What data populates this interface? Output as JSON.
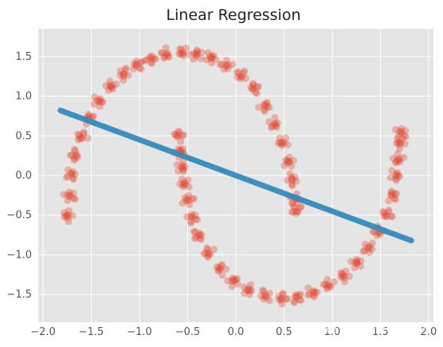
{
  "chart_data": {
    "type": "scatter",
    "title": "Linear Regression",
    "xlabel": "",
    "ylabel": "",
    "xlim": [
      -2.05,
      2.05
    ],
    "ylim": [
      -1.85,
      1.85
    ],
    "grid": true,
    "x_ticks": [
      "−2.0",
      "−1.5",
      "−1.0",
      "−0.5",
      "0.0",
      "0.5",
      "1.0",
      "1.5",
      "2.0"
    ],
    "y_ticks": [
      "−1.5",
      "−1.0",
      "−0.5",
      "0.0",
      "0.5",
      "1.0",
      "1.5"
    ],
    "x_tick_values": [
      -2.0,
      -1.5,
      -1.0,
      -0.5,
      0.0,
      0.5,
      1.0,
      1.5,
      2.0
    ],
    "y_tick_values": [
      -1.5,
      -1.0,
      -0.5,
      0.0,
      0.5,
      1.0,
      1.5
    ],
    "series": [
      {
        "kind": "scatter",
        "color": "#E24A33",
        "points": [
          [
            -1.75,
            -0.5
          ],
          [
            -1.72,
            -0.25
          ],
          [
            -1.7,
            0.02
          ],
          [
            -1.66,
            0.25
          ],
          [
            -1.6,
            0.48
          ],
          [
            -1.52,
            0.72
          ],
          [
            -1.42,
            0.93
          ],
          [
            -1.3,
            1.12
          ],
          [
            -1.17,
            1.28
          ],
          [
            -1.03,
            1.4
          ],
          [
            -0.88,
            1.48
          ],
          [
            -0.72,
            1.53
          ],
          [
            -0.55,
            1.55
          ],
          [
            -0.4,
            1.53
          ],
          [
            -0.25,
            1.48
          ],
          [
            -0.1,
            1.38
          ],
          [
            0.05,
            1.25
          ],
          [
            0.18,
            1.1
          ],
          [
            0.3,
            0.88
          ],
          [
            0.4,
            0.65
          ],
          [
            0.48,
            0.42
          ],
          [
            0.55,
            0.18
          ],
          [
            0.59,
            -0.05
          ],
          [
            0.62,
            -0.3
          ],
          [
            0.63,
            -0.45
          ],
          [
            -0.6,
            0.5
          ],
          [
            -0.58,
            0.3
          ],
          [
            -0.56,
            0.1
          ],
          [
            -0.54,
            -0.1
          ],
          [
            -0.5,
            -0.3
          ],
          [
            -0.45,
            -0.52
          ],
          [
            -0.38,
            -0.75
          ],
          [
            -0.28,
            -0.98
          ],
          [
            -0.16,
            -1.18
          ],
          [
            -0.02,
            -1.33
          ],
          [
            0.13,
            -1.45
          ],
          [
            0.3,
            -1.52
          ],
          [
            0.47,
            -1.55
          ],
          [
            0.63,
            -1.53
          ],
          [
            0.8,
            -1.47
          ],
          [
            0.96,
            -1.38
          ],
          [
            1.12,
            -1.26
          ],
          [
            1.26,
            -1.1
          ],
          [
            1.38,
            -0.92
          ],
          [
            1.48,
            -0.72
          ],
          [
            1.56,
            -0.5
          ],
          [
            1.62,
            -0.25
          ],
          [
            1.66,
            0.0
          ],
          [
            1.68,
            0.2
          ],
          [
            1.7,
            0.42
          ],
          [
            1.72,
            0.55
          ]
        ]
      },
      {
        "kind": "line",
        "color": "#348ABD",
        "points": [
          [
            -1.82,
            0.82
          ],
          [
            1.82,
            -0.82
          ]
        ]
      }
    ]
  },
  "watermark": {
    "text": "微信号: deephub-imba",
    "icon": "wechat-icon"
  }
}
